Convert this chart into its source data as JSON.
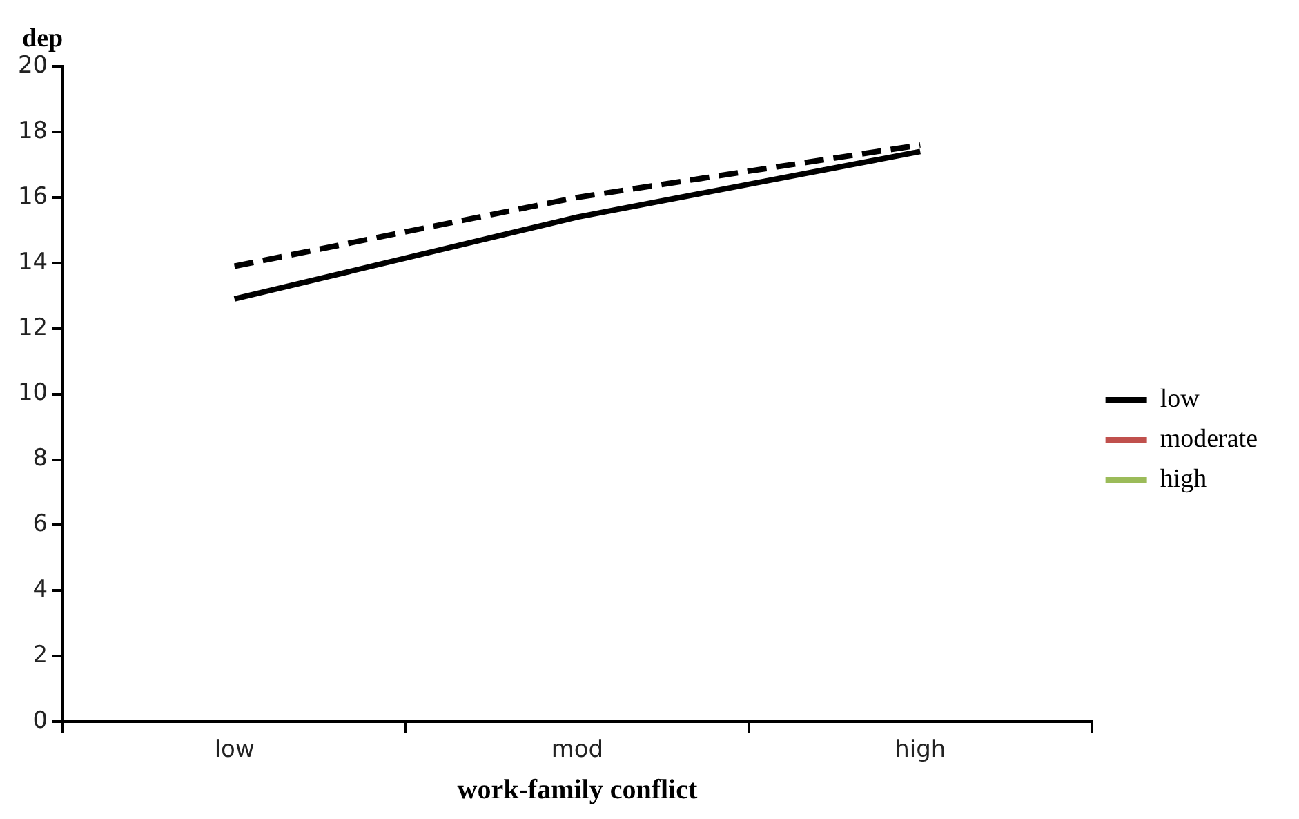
{
  "chart_data": {
    "type": "line",
    "xlabel": "work-family conflict",
    "ylabel": "dep",
    "categories": [
      "low",
      "mod",
      "high"
    ],
    "series": [
      {
        "name": "low",
        "color": "#000000",
        "line_style": "dashed",
        "values": [
          13.9,
          16.0,
          17.6
        ]
      },
      {
        "color": "#000000",
        "line_style": "solid",
        "values": [
          12.9,
          15.4,
          17.4
        ]
      },
      {
        "name": "moderate",
        "color": "#c0504d",
        "line_style": "solid",
        "values": [
          null,
          null,
          null
        ]
      },
      {
        "name": "high",
        "color": "#9bbb59",
        "line_style": "solid",
        "values": [
          null,
          null,
          null
        ]
      }
    ],
    "ylim": [
      0,
      20
    ],
    "yticks": [
      0,
      2,
      4,
      6,
      8,
      10,
      12,
      14,
      16,
      18,
      20
    ],
    "grid": false,
    "legend": "right",
    "marker": "none"
  }
}
